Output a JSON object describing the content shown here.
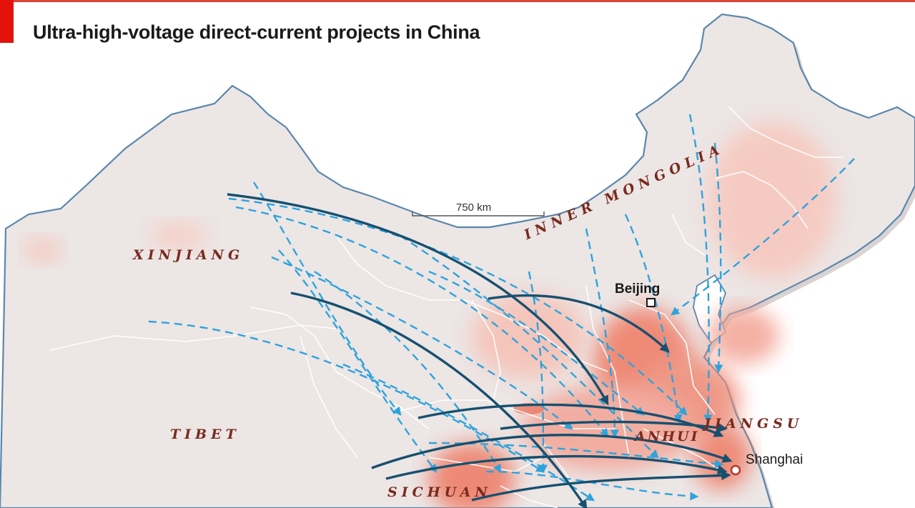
{
  "title": "Ultra-high-voltage direct-current projects in China",
  "scale": {
    "label": "750 km"
  },
  "regions": {
    "xinjiang": "XINJIANG",
    "tibet": "TIBET",
    "sichuan": "SICHUAN",
    "inner_mongolia": "INNER MONGOLIA",
    "anhui": "ANHUI",
    "jiangsu": "JIANGSU"
  },
  "cities": {
    "beijing": "Beijing",
    "shanghai": "Shanghai"
  },
  "colors": {
    "land": "#ece6e5",
    "border": "#5a87ad",
    "province_border": "#ffffff",
    "population_density": "#e8583f",
    "dark_line": "#17506f",
    "dashed_line": "#2ea3dc",
    "region_label": "#7a2a1e",
    "accent_red": "#e3120b"
  },
  "legend_note": {
    "solid_dark_arrows": "solid-transmission-line",
    "dashed_light_arrows": "dashed-transmission-line"
  }
}
